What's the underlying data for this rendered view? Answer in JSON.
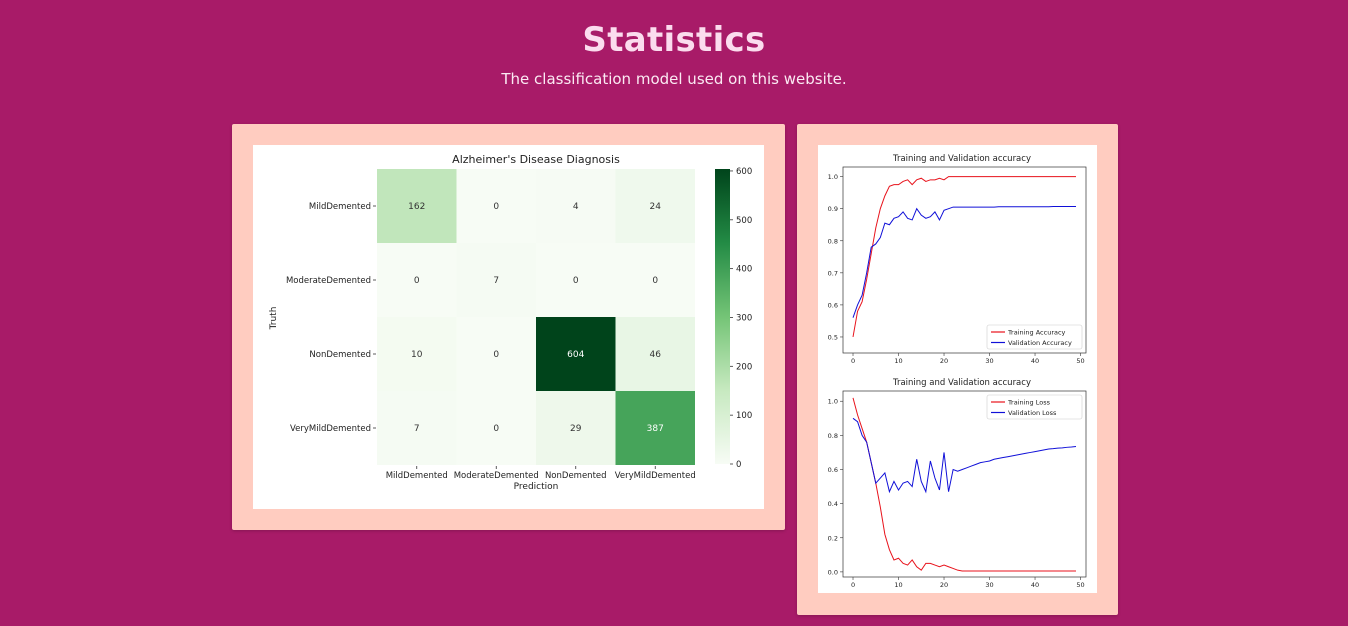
{
  "header": {
    "title": "Statistics",
    "subtitle": "The classification model used on this website."
  },
  "colors": {
    "background": "#a81b68",
    "card": "#ffccc0",
    "training_line": "#e8121b",
    "validation_line": "#1010d8"
  },
  "chart_data": [
    {
      "type": "heatmap",
      "title": "Alzheimer's Disease Diagnosis",
      "xlabel": "Prediction",
      "ylabel": "Truth",
      "x_categories": [
        "MildDemented",
        "ModerateDemented",
        "NonDemented",
        "VeryMildDemented"
      ],
      "y_categories": [
        "MildDemented",
        "ModerateDemented",
        "NonDemented",
        "VeryMildDemented"
      ],
      "values": [
        [
          162,
          0,
          4,
          24
        ],
        [
          0,
          7,
          0,
          0
        ],
        [
          10,
          0,
          604,
          46
        ],
        [
          7,
          0,
          29,
          387
        ]
      ],
      "colorbar": {
        "min": 0,
        "max": 604,
        "ticks": [
          0,
          100,
          200,
          300,
          400,
          500,
          600
        ],
        "colormap": "Greens"
      }
    },
    {
      "type": "line",
      "title": "Training and Validation accuracy",
      "xlim": [
        0,
        49
      ],
      "ylim": [
        0.45,
        1.03
      ],
      "x_ticks": [
        0,
        10,
        20,
        30,
        40,
        50
      ],
      "y_ticks": [
        "0.5",
        "0.6",
        "0.7",
        "0.8",
        "0.9",
        "1.0"
      ],
      "legend_position": "bottom-right",
      "x": [
        0,
        1,
        2,
        3,
        4,
        5,
        6,
        7,
        8,
        9,
        10,
        11,
        12,
        13,
        14,
        15,
        16,
        17,
        18,
        19,
        20,
        21,
        22,
        23,
        24,
        25,
        26,
        27,
        28,
        29,
        30,
        31,
        32,
        33,
        34,
        35,
        36,
        37,
        38,
        39,
        40,
        41,
        42,
        43,
        44,
        45,
        46,
        47,
        48,
        49
      ],
      "series": [
        {
          "name": "Training Accuracy",
          "color": "#e8121b",
          "values": [
            0.5,
            0.58,
            0.61,
            0.68,
            0.76,
            0.84,
            0.9,
            0.94,
            0.97,
            0.975,
            0.975,
            0.985,
            0.99,
            0.975,
            0.99,
            0.995,
            0.985,
            0.99,
            0.99,
            0.995,
            0.99,
            1.0,
            1.0,
            1.0,
            1.0,
            1.0,
            1.0,
            1.0,
            1.0,
            1.0,
            1.0,
            1.0,
            1.0,
            1.0,
            1.0,
            1.0,
            1.0,
            1.0,
            1.0,
            1.0,
            1.0,
            1.0,
            1.0,
            1.0,
            1.0,
            1.0,
            1.0,
            1.0,
            1.0,
            1.0
          ]
        },
        {
          "name": "Validation Accuracy",
          "color": "#1010d8",
          "values": [
            0.56,
            0.6,
            0.63,
            0.7,
            0.78,
            0.79,
            0.81,
            0.855,
            0.85,
            0.87,
            0.875,
            0.89,
            0.87,
            0.865,
            0.9,
            0.88,
            0.87,
            0.875,
            0.89,
            0.865,
            0.895,
            0.9,
            0.905,
            0.905,
            0.905,
            0.905,
            0.905,
            0.905,
            0.905,
            0.905,
            0.905,
            0.905,
            0.906,
            0.906,
            0.906,
            0.906,
            0.906,
            0.906,
            0.906,
            0.906,
            0.906,
            0.906,
            0.906,
            0.906,
            0.907,
            0.907,
            0.907,
            0.907,
            0.907,
            0.907
          ]
        }
      ]
    },
    {
      "type": "line",
      "title": "Training and Validation accuracy",
      "xlim": [
        0,
        49
      ],
      "ylim": [
        -0.03,
        1.06
      ],
      "x_ticks": [
        0,
        10,
        20,
        30,
        40,
        50
      ],
      "y_ticks": [
        "0.0",
        "0.2",
        "0.4",
        "0.6",
        "0.8",
        "1.0"
      ],
      "legend_position": "top-right",
      "x": [
        0,
        1,
        2,
        3,
        4,
        5,
        6,
        7,
        8,
        9,
        10,
        11,
        12,
        13,
        14,
        15,
        16,
        17,
        18,
        19,
        20,
        21,
        22,
        23,
        24,
        25,
        26,
        27,
        28,
        29,
        30,
        31,
        32,
        33,
        34,
        35,
        36,
        37,
        38,
        39,
        40,
        41,
        42,
        43,
        44,
        45,
        46,
        47,
        48,
        49
      ],
      "series": [
        {
          "name": "Training Loss",
          "color": "#e8121b",
          "values": [
            1.02,
            0.92,
            0.84,
            0.76,
            0.64,
            0.52,
            0.38,
            0.22,
            0.13,
            0.07,
            0.08,
            0.05,
            0.04,
            0.07,
            0.03,
            0.01,
            0.05,
            0.05,
            0.04,
            0.03,
            0.04,
            0.03,
            0.02,
            0.01,
            0.005,
            0.005,
            0.005,
            0.005,
            0.005,
            0.005,
            0.005,
            0.005,
            0.005,
            0.005,
            0.005,
            0.005,
            0.005,
            0.005,
            0.005,
            0.005,
            0.005,
            0.005,
            0.005,
            0.005,
            0.005,
            0.005,
            0.005,
            0.005,
            0.005,
            0.005
          ]
        },
        {
          "name": "Validation Loss",
          "color": "#1010d8",
          "values": [
            0.9,
            0.88,
            0.8,
            0.76,
            0.64,
            0.52,
            0.55,
            0.58,
            0.47,
            0.53,
            0.48,
            0.52,
            0.53,
            0.5,
            0.66,
            0.53,
            0.47,
            0.65,
            0.55,
            0.48,
            0.7,
            0.47,
            0.6,
            0.59,
            0.6,
            0.61,
            0.62,
            0.63,
            0.64,
            0.645,
            0.65,
            0.66,
            0.665,
            0.67,
            0.675,
            0.68,
            0.685,
            0.69,
            0.695,
            0.7,
            0.705,
            0.71,
            0.715,
            0.72,
            0.722,
            0.725,
            0.727,
            0.73,
            0.732,
            0.735
          ]
        }
      ]
    }
  ]
}
